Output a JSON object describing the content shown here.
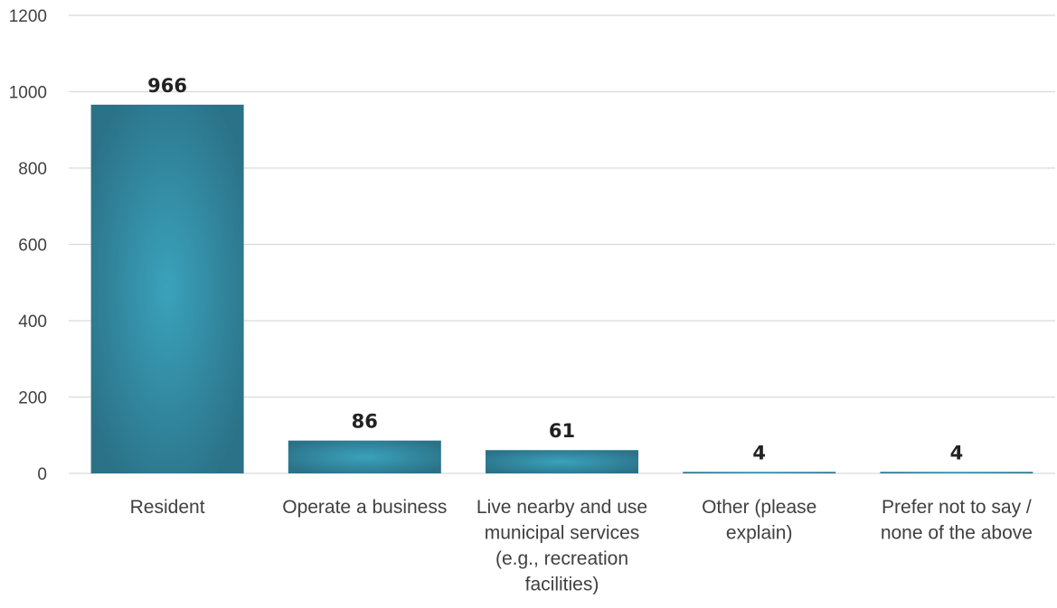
{
  "chart_data": {
    "type": "bar",
    "categories": [
      "Resident",
      "Operate a business",
      "Live nearby and use municipal services (e.g., recreation facilities)",
      "Other (please explain)",
      "Prefer not to say / none of the above"
    ],
    "category_label_lines": [
      [
        "Resident"
      ],
      [
        "Operate a business"
      ],
      [
        "Live nearby and use",
        "municipal services",
        "(e.g., recreation",
        "facilities)"
      ],
      [
        "Other (please",
        "explain)"
      ],
      [
        "Prefer not to say /",
        "none of the above"
      ]
    ],
    "values": [
      966,
      86,
      61,
      4,
      4
    ],
    "data_labels": [
      "966",
      "86",
      "61",
      "4",
      "4"
    ],
    "ylim": [
      0,
      1200
    ],
    "yticks": [
      0,
      200,
      400,
      600,
      800,
      1000,
      1200
    ],
    "grid": true,
    "legend": "none",
    "colors": {
      "bar_center": "#3aa2bb",
      "bar_edge": "#2b7288",
      "gridline": "#d9d9d9",
      "text": "#404040"
    }
  }
}
